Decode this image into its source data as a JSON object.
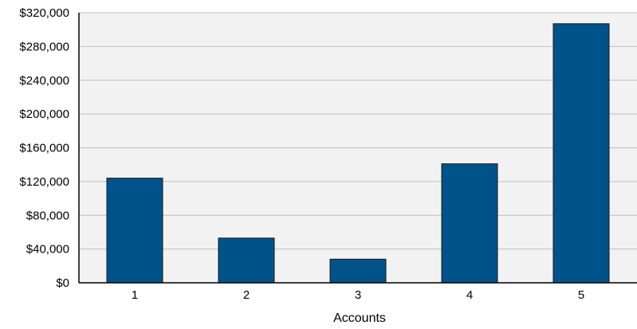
{
  "chart_data": {
    "type": "bar",
    "title": "",
    "xlabel": "Accounts",
    "ylabel": "",
    "categories": [
      "1",
      "2",
      "3",
      "4",
      "5"
    ],
    "values": [
      124000,
      53000,
      28000,
      141000,
      307000
    ],
    "ylim": [
      0,
      320000
    ],
    "yticks": [
      0,
      40000,
      80000,
      120000,
      160000,
      200000,
      240000,
      280000,
      320000
    ],
    "ytick_labels": [
      "$0",
      "$40,000",
      "$80,000",
      "$120,000",
      "$160,000",
      "$200,000",
      "$240,000",
      "$280,000",
      "$320,000"
    ],
    "grid": true,
    "legend": "none",
    "colors": {
      "bar": "#00538A",
      "bar_edge": "#1a1a1a",
      "plot_background": "#F2F2F2",
      "gridline": "#BFBFBF",
      "axis": "#000000"
    }
  }
}
